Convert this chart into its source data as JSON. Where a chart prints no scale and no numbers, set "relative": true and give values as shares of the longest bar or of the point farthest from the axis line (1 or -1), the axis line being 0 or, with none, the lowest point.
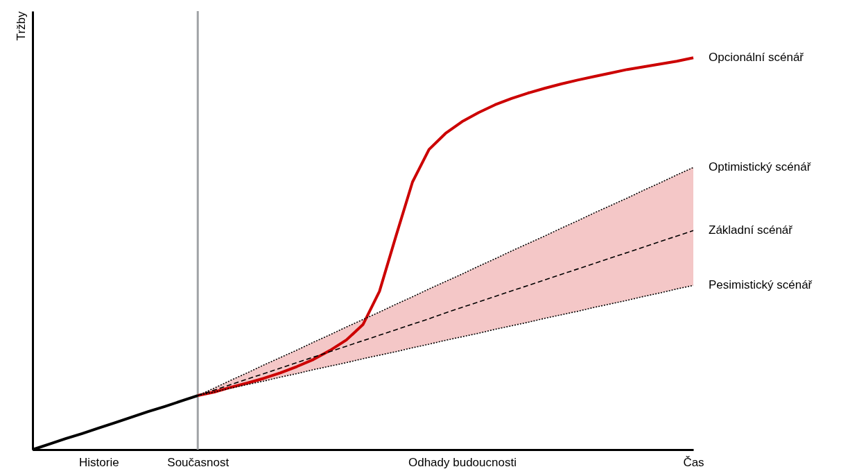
{
  "chart_data": {
    "type": "line",
    "relative": true,
    "ylabel": "Tržby",
    "categories": [
      null,
      null,
      null,
      null,
      "Historie",
      null,
      null,
      null,
      null,
      null,
      "Současnost",
      null,
      null,
      null,
      null,
      null,
      null,
      null,
      null,
      null,
      null,
      null,
      null,
      null,
      null,
      null,
      "Odhady budoucnosti",
      null,
      null,
      null,
      null,
      null,
      null,
      null,
      null,
      null,
      null,
      null,
      null,
      null,
      "Čas"
    ],
    "grid": false,
    "legend": false,
    "marker": "none",
    "ref_lines": [
      {
        "axis": "x",
        "value": "Současnost",
        "color": "#a0a3a6"
      }
    ],
    "series": [
      {
        "color": "#000000",
        "line_style": "solid",
        "values": [
          0,
          0.014,
          0.028,
          0.041,
          0.055,
          0.069,
          0.083,
          0.097,
          0.11,
          0.124,
          0.138,
          null,
          null,
          null,
          null,
          null,
          null,
          null,
          null,
          null,
          null,
          null,
          null,
          null,
          null,
          null,
          null,
          null,
          null,
          null,
          null,
          null,
          null,
          null,
          null,
          null,
          null,
          null,
          null,
          null,
          null
        ]
      },
      {
        "name": "Opcionální scénář",
        "color": "#cc0000",
        "line_style": "solid",
        "values": [
          null,
          null,
          null,
          null,
          null,
          null,
          null,
          null,
          null,
          null,
          0.138,
          0.147,
          0.159,
          0.17,
          0.182,
          0.196,
          0.212,
          0.23,
          0.253,
          0.28,
          0.319,
          0.404,
          0.545,
          0.683,
          0.766,
          0.807,
          0.837,
          0.86,
          0.88,
          0.896,
          0.91,
          0.922,
          0.933,
          0.943,
          0.952,
          0.961,
          0.97,
          0.977,
          0.984,
          0.991,
          1
        ]
      },
      {
        "name": "Optimistický scénář",
        "color": "#000000",
        "line_style": "dotted",
        "values": [
          null,
          null,
          null,
          null,
          null,
          null,
          null,
          null,
          null,
          null,
          0.138,
          0.157,
          0.177,
          0.196,
          0.216,
          0.235,
          0.254,
          0.274,
          0.293,
          0.313,
          0.332,
          0.351,
          0.371,
          0.39,
          0.41,
          0.429,
          0.448,
          0.468,
          0.487,
          0.507,
          0.526,
          0.545,
          0.565,
          0.584,
          0.604,
          0.623,
          0.642,
          0.662,
          0.681,
          0.701,
          0.72
        ]
      },
      {
        "name": "Základní scénář",
        "color": "#000000",
        "line_style": "dashed",
        "values": [
          null,
          null,
          null,
          null,
          null,
          null,
          null,
          null,
          null,
          null,
          0.138,
          0.152,
          0.166,
          0.18,
          0.194,
          0.208,
          0.222,
          0.236,
          0.25,
          0.264,
          0.278,
          0.292,
          0.306,
          0.32,
          0.334,
          0.349,
          0.363,
          0.377,
          0.391,
          0.405,
          0.419,
          0.433,
          0.447,
          0.461,
          0.475,
          0.489,
          0.503,
          0.517,
          0.531,
          0.545,
          0.559
        ],
        "lower": [
          null,
          null,
          null,
          null,
          null,
          null,
          null,
          null,
          null,
          null,
          0.138,
          0.147,
          0.157,
          0.166,
          0.175,
          0.185,
          0.194,
          0.204,
          0.213,
          0.222,
          0.232,
          0.241,
          0.25,
          0.26,
          0.269,
          0.279,
          0.288,
          0.297,
          0.307,
          0.316,
          0.325,
          0.335,
          0.344,
          0.353,
          0.363,
          0.372,
          0.381,
          0.391,
          0.4,
          0.41,
          0.419
        ],
        "upper": [
          null,
          null,
          null,
          null,
          null,
          null,
          null,
          null,
          null,
          null,
          0.138,
          0.157,
          0.177,
          0.196,
          0.216,
          0.235,
          0.254,
          0.274,
          0.293,
          0.313,
          0.332,
          0.351,
          0.371,
          0.39,
          0.41,
          0.429,
          0.448,
          0.468,
          0.487,
          0.507,
          0.526,
          0.545,
          0.565,
          0.584,
          0.604,
          0.623,
          0.642,
          0.662,
          0.681,
          0.701,
          0.72
        ]
      },
      {
        "name": "Pesimistický scénář",
        "color": "#000000",
        "line_style": "dotted",
        "values": [
          null,
          null,
          null,
          null,
          null,
          null,
          null,
          null,
          null,
          null,
          0.138,
          0.147,
          0.157,
          0.166,
          0.175,
          0.185,
          0.194,
          0.204,
          0.213,
          0.222,
          0.232,
          0.241,
          0.25,
          0.26,
          0.269,
          0.279,
          0.288,
          0.297,
          0.307,
          0.316,
          0.325,
          0.335,
          0.344,
          0.353,
          0.363,
          0.372,
          0.381,
          0.391,
          0.4,
          0.41,
          0.419
        ]
      }
    ]
  }
}
